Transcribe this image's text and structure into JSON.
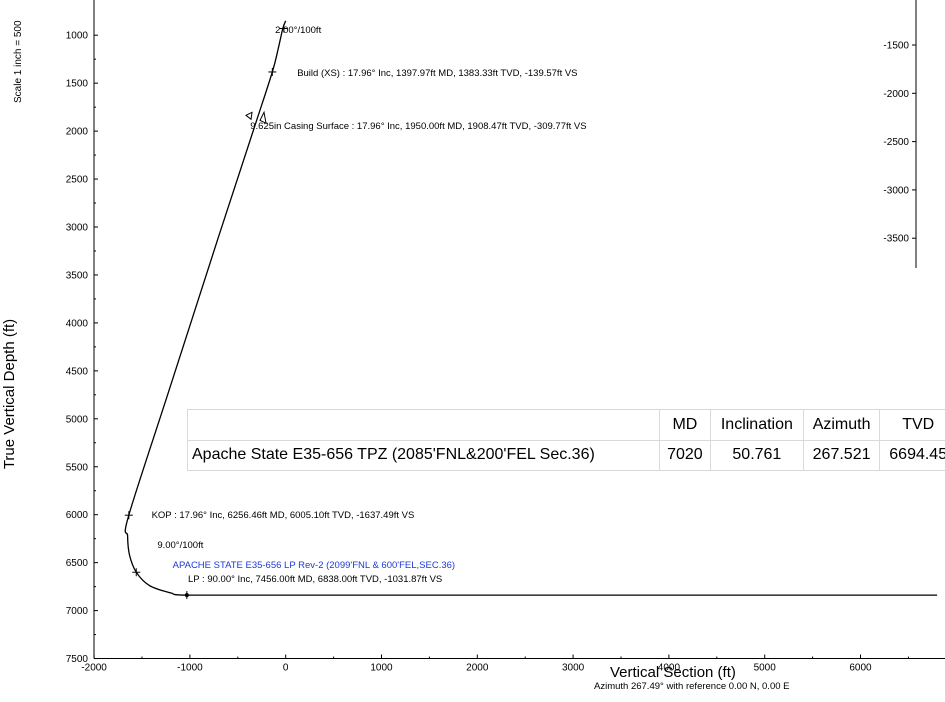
{
  "chart_data": {
    "type": "line",
    "title": "",
    "xlabel": "Vertical Section (ft)",
    "ylabel": "True Vertical Depth (ft)",
    "scale_note": "Scale 1 inch = 500",
    "azimuth_note": "Azimuth 267.49° with reference 0.00 N, 0.00 E",
    "x_ticks": [
      "-2000",
      "-1000",
      "0",
      "1000",
      "2000",
      "3000",
      "4000",
      "5000",
      "6000"
    ],
    "y_ticks": [
      "1000",
      "1500",
      "2000",
      "2500",
      "3000",
      "3500",
      "4000",
      "4500",
      "5000",
      "5500",
      "6000",
      "6500",
      "7000",
      "7500"
    ],
    "xlim": [
      -2000,
      6800
    ],
    "ylim": [
      850,
      7500
    ],
    "inset_y_ticks": [
      "-1500",
      "-2000",
      "-2500",
      "-3000",
      "-3500"
    ],
    "series": [
      {
        "x": [
          0,
          -30,
          -80,
          -139.57,
          -309.77,
          -700,
          -1200,
          -1637.49,
          -1650,
          -1630,
          -1560,
          -1420,
          -1200,
          -1031.87,
          0,
          2000,
          4000,
          6800
        ],
        "y": [
          850,
          930,
          1150,
          1383.33,
          1908.47,
          3100,
          4650,
          6005.1,
          6220,
          6420,
          6600,
          6740,
          6815,
          6838.0,
          6838,
          6838,
          6838,
          6838
        ]
      }
    ],
    "annotations": [
      {
        "text": "2.00°/100ft",
        "x": -110,
        "y": 960,
        "color": "#000000"
      },
      {
        "text": "Build (XS) : 17.96° Inc, 1397.97ft MD, 1383.33ft TVD, -139.57ft VS",
        "x": 120,
        "y": 1400,
        "color": "#000000"
      },
      {
        "text": "9.625in Casing Surface : 17.96° Inc, 1950.00ft MD, 1908.47ft TVD, -309.77ft VS",
        "x": -370,
        "y": 1960,
        "color": "#000000"
      },
      {
        "text": "KOP : 17.96° Inc, 6256.46ft MD, 6005.10ft TVD, -1637.49ft VS",
        "x": -1400,
        "y": 6010,
        "color": "#000000"
      },
      {
        "text": "9.00°/100ft",
        "x": -1340,
        "y": 6330,
        "color": "#000000"
      },
      {
        "text": "APACHE STATE E35-656 LP Rev-2 (2099'FNL & 600'FEL,SEC.36)",
        "x": -1180,
        "y": 6530,
        "color": "#1e3ad6"
      },
      {
        "text": "LP : 90.00° Inc, 7456.00ft MD, 6838.00ft TVD, -1031.87ft VS",
        "x": -1020,
        "y": 6680,
        "color": "#000000"
      }
    ]
  },
  "target_table": {
    "headers": [
      "",
      "MD",
      "Inclination",
      "Azimuth",
      "TVD"
    ],
    "row": [
      "Apache State E35-656 TPZ (2085'FNL&200'FEL Sec.36)",
      "7020",
      "50.761",
      "267.521",
      "6694.45"
    ]
  }
}
